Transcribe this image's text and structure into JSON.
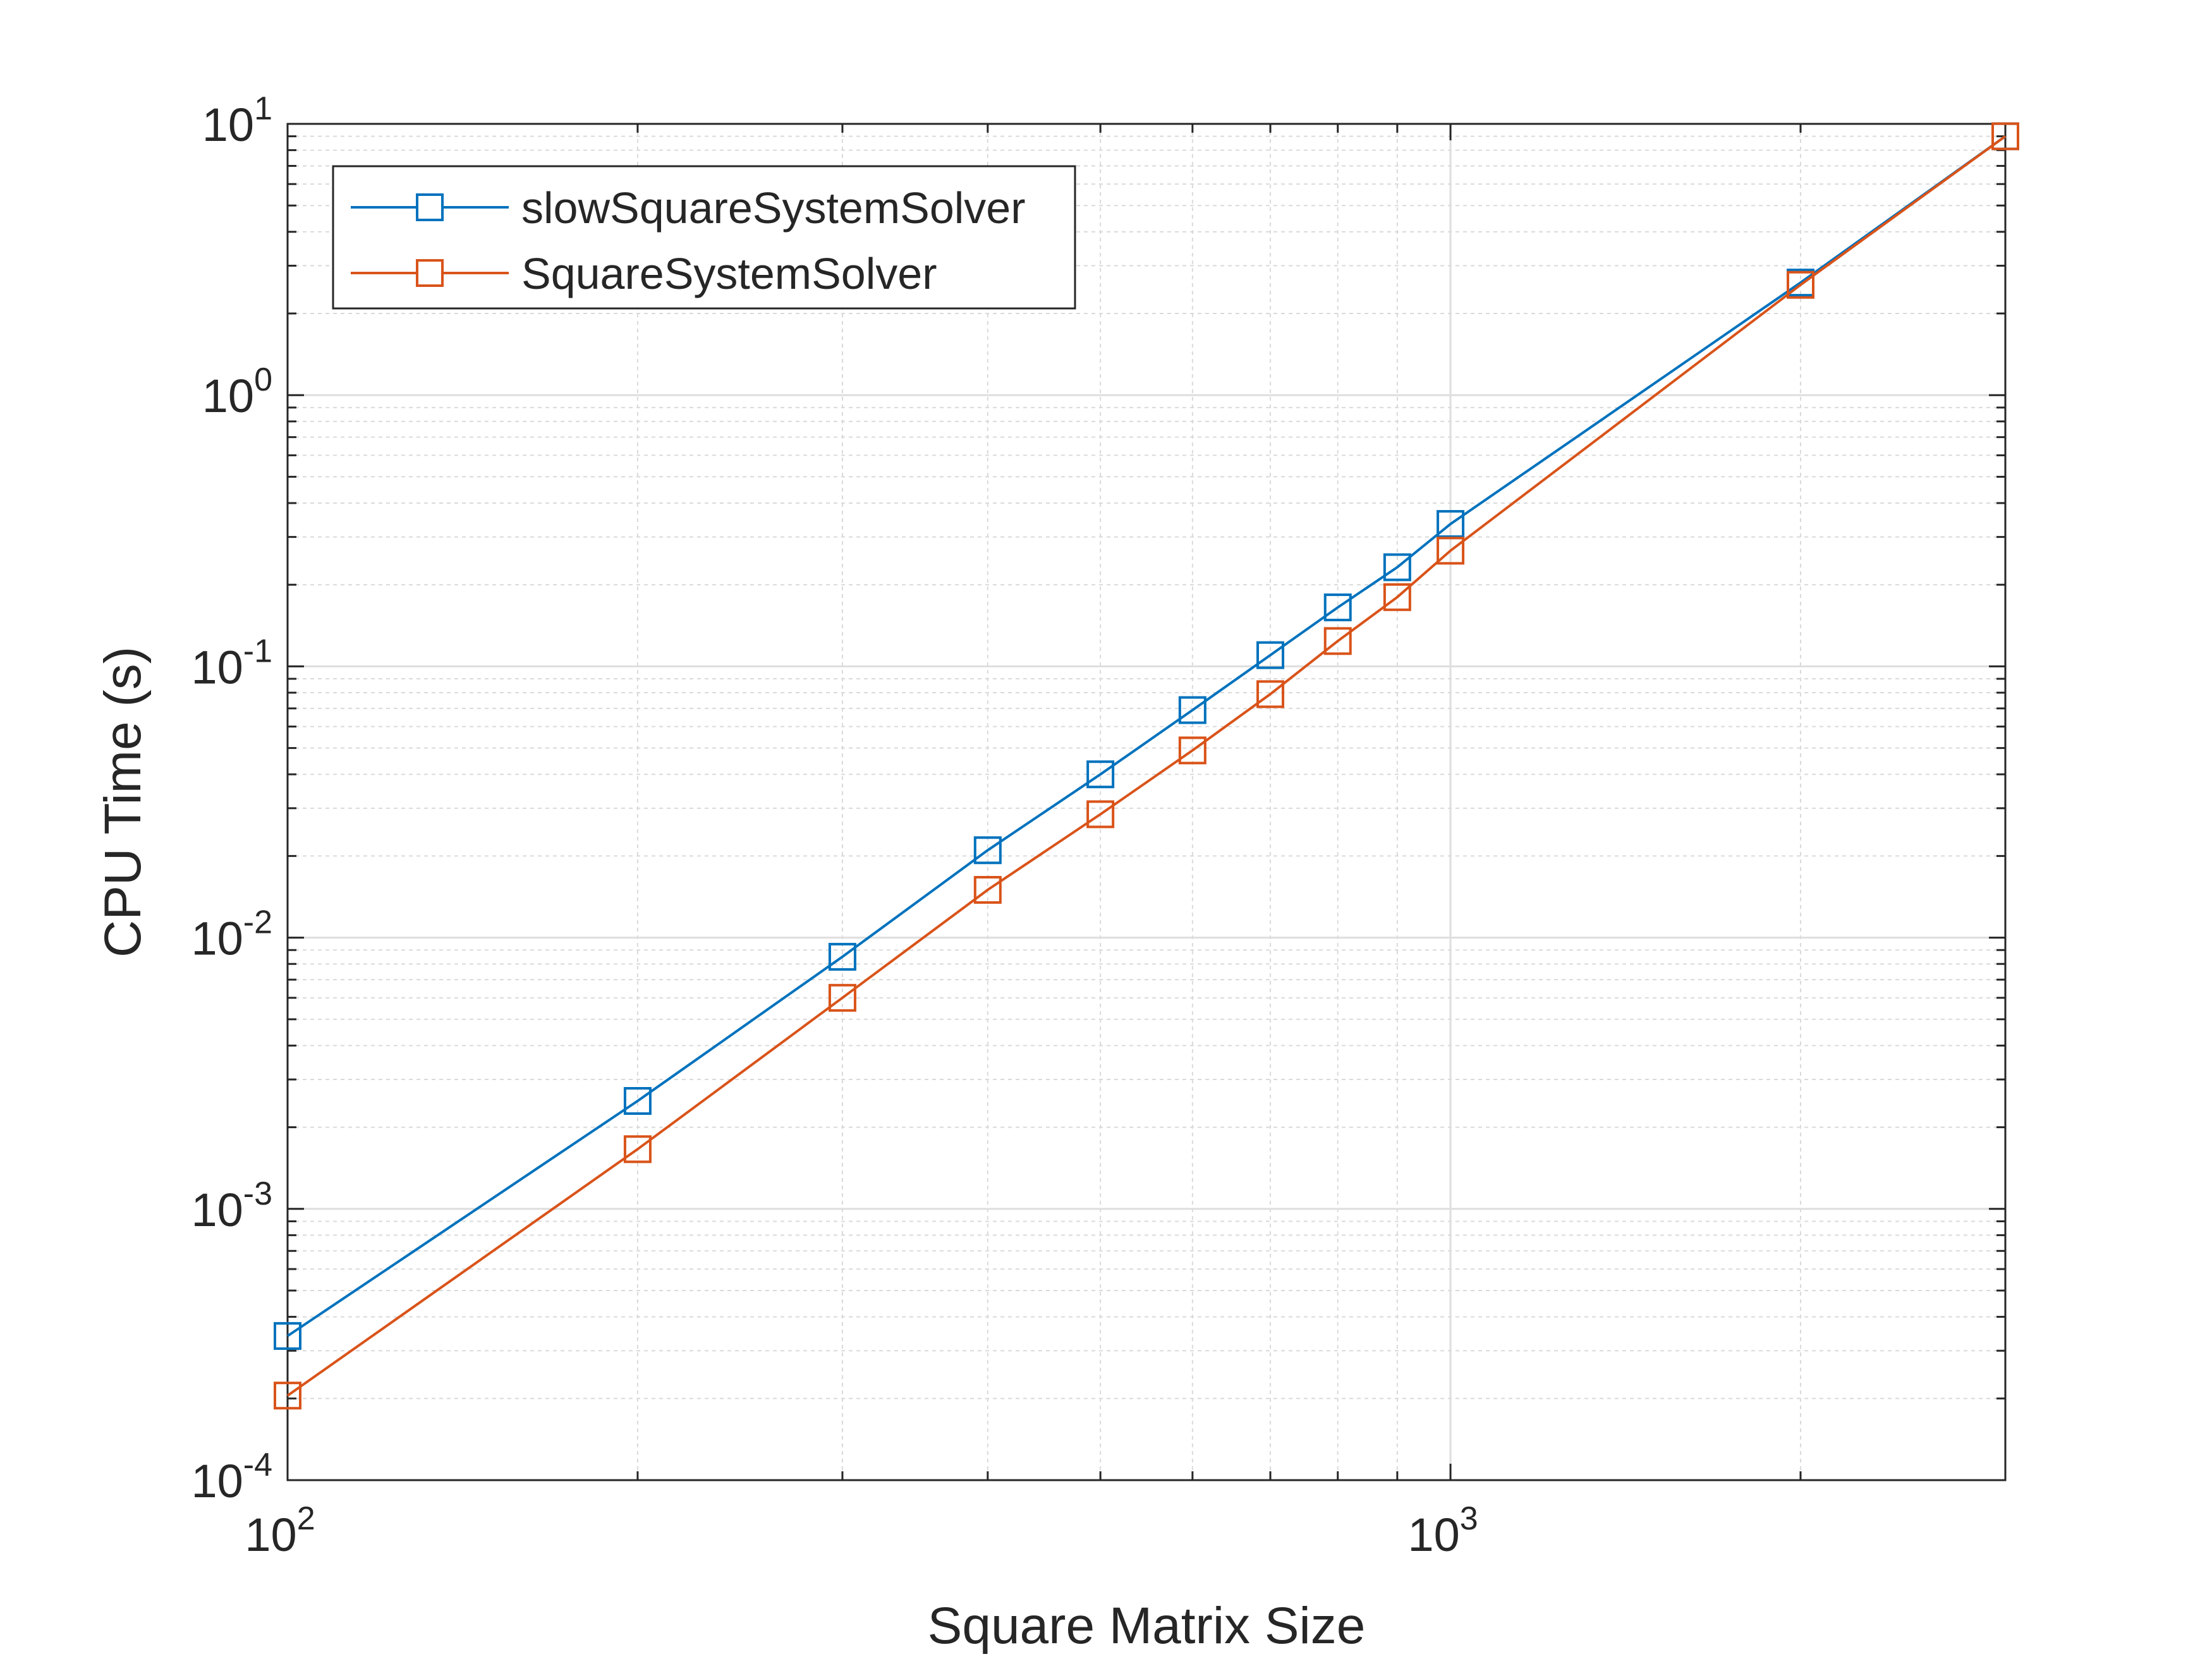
{
  "chart_data": {
    "type": "line",
    "title": "",
    "xlabel": "Square Matrix Size",
    "ylabel": "CPU Time (s)",
    "xscale": "log",
    "yscale": "log",
    "xlim": [
      100,
      3000
    ],
    "ylim": [
      0.0001,
      10
    ],
    "grid": true,
    "minor_grid": true,
    "legend_position": "top-left",
    "x_ticks": [
      {
        "value": 100,
        "base": "10",
        "exp": "2"
      },
      {
        "value": 1000,
        "base": "10",
        "exp": "3"
      }
    ],
    "y_ticks": [
      {
        "value": 0.0001,
        "base": "10",
        "exp": "-4"
      },
      {
        "value": 0.001,
        "base": "10",
        "exp": "-3"
      },
      {
        "value": 0.01,
        "base": "10",
        "exp": "-2"
      },
      {
        "value": 0.1,
        "base": "10",
        "exp": "-1"
      },
      {
        "value": 1,
        "base": "10",
        "exp": "0"
      },
      {
        "value": 10,
        "base": "10",
        "exp": "1"
      }
    ],
    "series": [
      {
        "name": "slowSquareSystemSolver",
        "color": "#0072BD",
        "marker": "square",
        "x": [
          100,
          200,
          300,
          400,
          500,
          600,
          700,
          800,
          900,
          1000,
          2000,
          3000
        ],
        "y": [
          0.00034,
          0.0025,
          0.0085,
          0.021,
          0.04,
          0.069,
          0.11,
          0.165,
          0.232,
          0.335,
          2.6,
          9.0
        ]
      },
      {
        "name": "SquareSystemSolver",
        "color": "#D95319",
        "marker": "square",
        "x": [
          100,
          200,
          300,
          400,
          500,
          600,
          700,
          800,
          900,
          1000,
          2000,
          3000
        ],
        "y": [
          0.000205,
          0.00166,
          0.006,
          0.015,
          0.0285,
          0.049,
          0.079,
          0.124,
          0.18,
          0.267,
          2.55,
          9.0
        ]
      }
    ]
  }
}
